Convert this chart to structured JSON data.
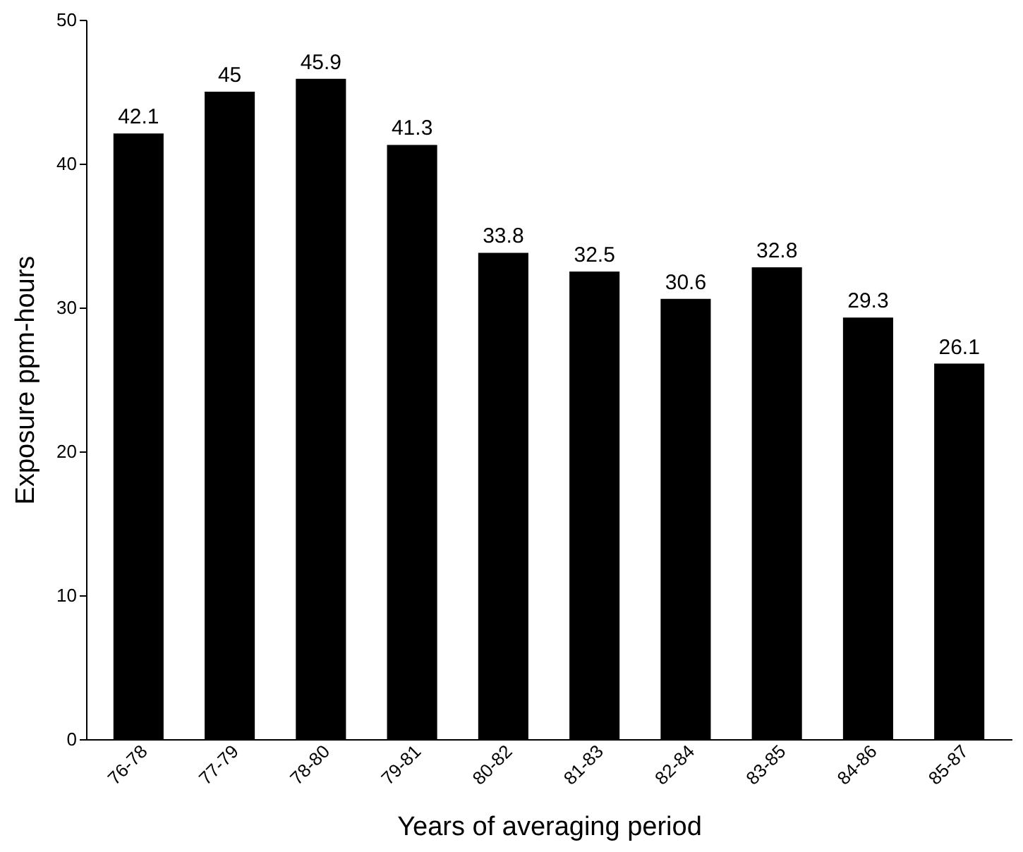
{
  "chart_data": {
    "type": "bar",
    "xlabel": "Years of averaging period",
    "ylabel": "Exposure ppm-hours",
    "categories": [
      "76-78",
      "77-79",
      "78-80",
      "79-81",
      "80-82",
      "81-83",
      "82-84",
      "83-85",
      "84-86",
      "85-87"
    ],
    "values": [
      42.1,
      45,
      45.9,
      41.3,
      33.8,
      32.5,
      30.6,
      32.8,
      29.3,
      26.1
    ],
    "color": "#000000",
    "ylim": [
      0,
      50
    ],
    "yticks": [
      0,
      10,
      20,
      30,
      40,
      50
    ],
    "grid": false,
    "data_labels": true
  }
}
